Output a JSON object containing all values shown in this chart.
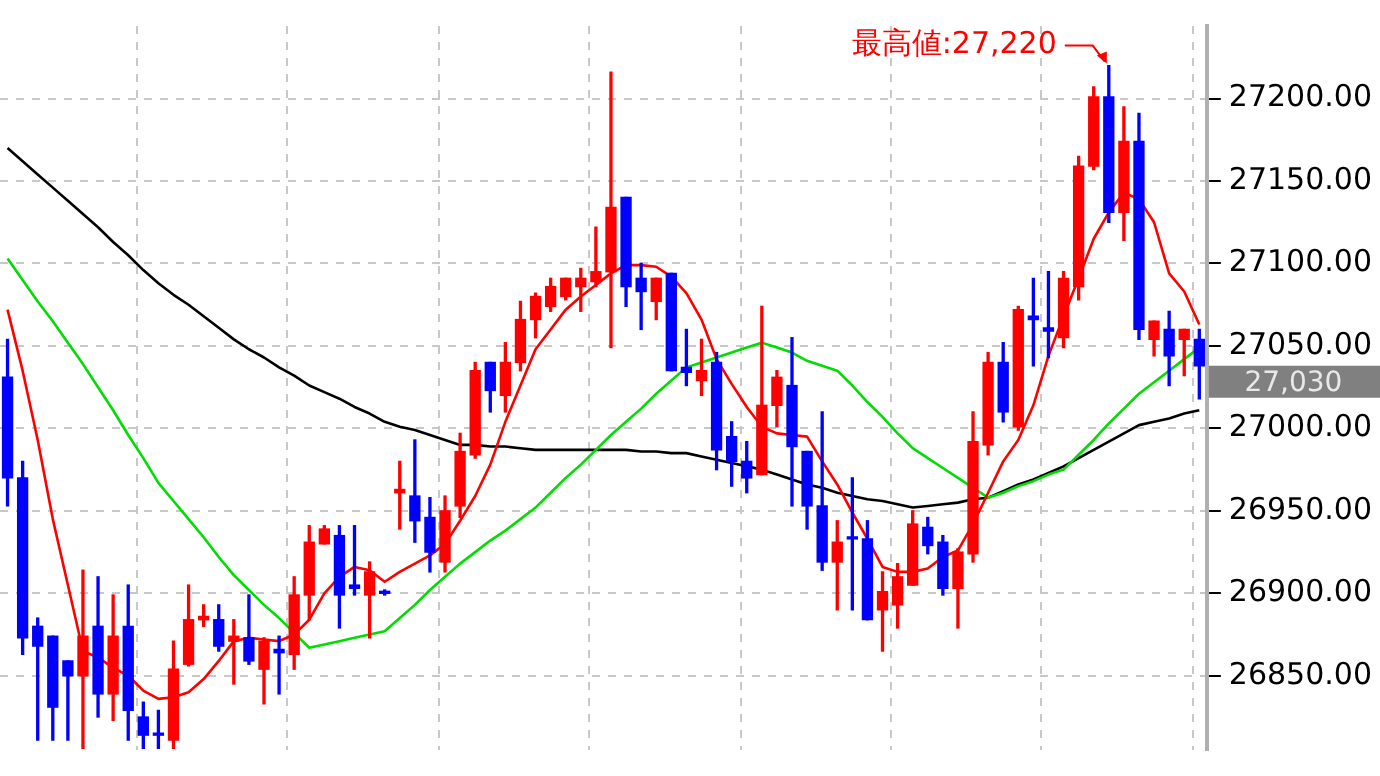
{
  "chart_data": {
    "type": "candlestick",
    "categories": [
      null,
      null,
      null,
      null,
      null,
      null,
      null,
      null,
      null,
      null,
      null,
      null,
      null,
      null,
      null,
      null,
      null,
      null,
      null,
      null,
      null,
      null,
      null,
      null,
      null,
      null,
      null,
      null,
      null,
      null,
      null,
      null,
      null,
      null,
      null,
      null,
      null,
      null,
      null,
      null,
      null,
      null,
      null,
      null,
      null,
      null,
      null,
      null,
      null,
      null,
      null,
      null,
      null,
      null,
      null,
      null,
      null,
      null,
      null,
      null,
      null,
      null,
      null,
      null,
      null,
      null,
      null,
      null,
      null,
      null,
      null,
      null,
      null,
      null,
      null,
      null,
      null,
      null,
      null,
      null
    ],
    "ohlc": [
      [
        27031,
        27054,
        26953,
        26970
      ],
      [
        26970,
        26980,
        26863,
        26873
      ],
      [
        26880,
        26885,
        26811,
        26868
      ],
      [
        26874,
        26874,
        26811,
        26831
      ],
      [
        26859,
        26859,
        26811,
        26850
      ],
      [
        26850,
        26914,
        26806,
        26874
      ],
      [
        26880,
        26910,
        26825,
        26839
      ],
      [
        26839,
        26899,
        26823,
        26874
      ],
      [
        26880,
        26905,
        26811,
        26829
      ],
      [
        26825,
        26834,
        26806,
        26814
      ],
      [
        26815,
        26829,
        26806,
        26814
      ],
      [
        26811,
        26871,
        26806,
        26854
      ],
      [
        26857,
        26905,
        26856,
        26884
      ],
      [
        26884,
        26893,
        26880,
        26886
      ],
      [
        26884,
        26893,
        26865,
        26868
      ],
      [
        26871,
        26884,
        26845,
        26874
      ],
      [
        26873,
        26899,
        26857,
        26859
      ],
      [
        26854,
        26873,
        26833,
        26871
      ],
      [
        26866,
        26874,
        26839,
        26864
      ],
      [
        26863,
        26910,
        26854,
        26899
      ],
      [
        26899,
        26941,
        26884,
        26931
      ],
      [
        26930,
        26941,
        26930,
        26939
      ],
      [
        26935,
        26941,
        26879,
        26899
      ],
      [
        26905,
        26941,
        26899,
        26903
      ],
      [
        26899,
        26919,
        26873,
        26913
      ],
      [
        26901,
        26902,
        26899,
        26900
      ],
      [
        26961,
        26980,
        26939,
        26963
      ],
      [
        26959,
        26993,
        26931,
        26944
      ],
      [
        26946,
        26958,
        26913,
        26925
      ],
      [
        26919,
        26959,
        26913,
        26950
      ],
      [
        26953,
        26997,
        26946,
        26986
      ],
      [
        26984,
        27040,
        26982,
        27035
      ],
      [
        27040,
        27040,
        27010,
        27023
      ],
      [
        27020,
        27052,
        27010,
        27040
      ],
      [
        27040,
        27077,
        27035,
        27066
      ],
      [
        27066,
        27082,
        27055,
        27080
      ],
      [
        27074,
        27091,
        27071,
        27086
      ],
      [
        27080,
        27091,
        27078,
        27091
      ],
      [
        27086,
        27097,
        27071,
        27091
      ],
      [
        27089,
        27122,
        27086,
        27095
      ],
      [
        27095,
        27216,
        27049,
        27134
      ],
      [
        27140,
        27140,
        27074,
        27086
      ],
      [
        27091,
        27100,
        27060,
        27083
      ],
      [
        27077,
        27091,
        27066,
        27091
      ],
      [
        27094,
        27094,
        27035,
        27035
      ],
      [
        27037,
        27060,
        27026,
        27034
      ],
      [
        27029,
        27054,
        27020,
        27035
      ],
      [
        27040,
        27046,
        26975,
        26987
      ],
      [
        26995,
        27004,
        26965,
        26980
      ],
      [
        26980,
        26992,
        26961,
        26970
      ],
      [
        26972,
        27074,
        26972,
        27014
      ],
      [
        27014,
        27035,
        27001,
        27031
      ],
      [
        27026,
        27055,
        26953,
        26989
      ],
      [
        26986,
        26986,
        26939,
        26953
      ],
      [
        26953,
        27010,
        26914,
        26919
      ],
      [
        26919,
        26944,
        26890,
        26931
      ],
      [
        26934,
        26970,
        26890,
        26933
      ],
      [
        26933,
        26944,
        26884,
        26884
      ],
      [
        26890,
        26913,
        26865,
        26901
      ],
      [
        26893,
        26918,
        26879,
        26910
      ],
      [
        26905,
        26950,
        26905,
        26942
      ],
      [
        26940,
        26946,
        26924,
        26929
      ],
      [
        26931,
        26935,
        26899,
        26903
      ],
      [
        26903,
        26927,
        26879,
        26925
      ],
      [
        26924,
        27010,
        26919,
        26992
      ],
      [
        26990,
        27046,
        26984,
        27040
      ],
      [
        27040,
        27052,
        27004,
        27010
      ],
      [
        27001,
        27074,
        26999,
        27072
      ],
      [
        27068,
        27091,
        27038,
        27066
      ],
      [
        27061,
        27095,
        27043,
        27059
      ],
      [
        27055,
        27095,
        27049,
        27091
      ],
      [
        27086,
        27165,
        27078,
        27159
      ],
      [
        27159,
        27207,
        27157,
        27201
      ],
      [
        27201,
        27220,
        27125,
        27131
      ],
      [
        27131,
        27195,
        27114,
        27174
      ],
      [
        27174,
        27191,
        27054,
        27060
      ],
      [
        27054,
        27065,
        27044,
        27065
      ],
      [
        27060,
        27071,
        27026,
        27044
      ],
      [
        27054,
        27060,
        27032,
        27060
      ],
      [
        27054,
        27060,
        27018,
        27038
      ]
    ],
    "colors": [
      "#0000ff",
      "#0000ff",
      "#0000ff",
      "#0000ff",
      "#0000ff",
      "#ff0000",
      "#0000ff",
      "#ff0000",
      "#0000ff",
      "#0000ff",
      "#0000ff",
      "#ff0000",
      "#ff0000",
      "#ff0000",
      "#0000ff",
      "#ff0000",
      "#0000ff",
      "#ff0000",
      "#0000ff",
      "#ff0000",
      "#ff0000",
      "#ff0000",
      "#0000ff",
      "#0000ff",
      "#ff0000",
      "#0000ff",
      "#ff0000",
      "#0000ff",
      "#0000ff",
      "#ff0000",
      "#ff0000",
      "#ff0000",
      "#0000ff",
      "#ff0000",
      "#ff0000",
      "#ff0000",
      "#ff0000",
      "#ff0000",
      "#ff0000",
      "#ff0000",
      "#ff0000",
      "#0000ff",
      "#0000ff",
      "#ff0000",
      "#0000ff",
      "#0000ff",
      "#ff0000",
      "#0000ff",
      "#0000ff",
      "#0000ff",
      "#ff0000",
      "#ff0000",
      "#0000ff",
      "#0000ff",
      "#0000ff",
      "#ff0000",
      "#0000ff",
      "#0000ff",
      "#ff0000",
      "#ff0000",
      "#ff0000",
      "#0000ff",
      "#0000ff",
      "#ff0000",
      "#ff0000",
      "#ff0000",
      "#0000ff",
      "#ff0000",
      "#0000ff",
      "#0000ff",
      "#ff0000",
      "#ff0000",
      "#ff0000",
      "#0000ff",
      "#ff0000",
      "#0000ff",
      "#ff0000",
      "#0000ff",
      "#ff0000",
      "#0000ff"
    ],
    "series": [
      {
        "type": "line",
        "color": "#ff0000",
        "values": [
          27072,
          27035,
          26993,
          26945,
          26905,
          26865,
          26861,
          26855,
          26850,
          26841,
          26836,
          26837,
          26840,
          26848,
          26859,
          26871,
          26873,
          26872,
          26871,
          26875,
          26884,
          26900,
          26910,
          26916,
          26914,
          26907,
          26913,
          26918,
          26923,
          26930,
          26944,
          26959,
          26978,
          27004,
          27026,
          27048,
          27060,
          27072,
          27080,
          27087,
          27094,
          27099,
          27099,
          27098,
          27092,
          27082,
          27066,
          27042,
          27027,
          27013,
          27001,
          26997,
          26996,
          26995,
          26980,
          26966,
          26949,
          26933,
          26916,
          26913,
          26913,
          26915,
          26922,
          26926,
          26942,
          26961,
          26980,
          26993,
          27014,
          27044,
          27068,
          27091,
          27115,
          27131,
          27143,
          27139,
          27125,
          27094,
          27083,
          27063
        ]
      },
      {
        "type": "line",
        "color": "#00dd00",
        "values": [
          27103,
          27090,
          27077,
          27065,
          27052,
          27039,
          27025,
          27011,
          26996,
          26982,
          26967,
          26956,
          26945,
          26934,
          26922,
          26911,
          26902,
          26893,
          26885,
          26876,
          26867,
          26869,
          26871,
          26873,
          26875,
          26877,
          26885,
          26893,
          26902,
          26910,
          26918,
          26925,
          26932,
          26938,
          26945,
          26952,
          26961,
          26970,
          26978,
          26987,
          26996,
          27004,
          27012,
          27021,
          27029,
          27037,
          27040,
          27043,
          27046,
          27049,
          27052,
          27049,
          27046,
          27041,
          27038,
          27035,
          27026,
          27016,
          27007,
          26997,
          26988,
          26982,
          26976,
          26970,
          26964,
          26958,
          26961,
          26965,
          26968,
          26972,
          26975,
          26984,
          26993,
          27003,
          27012,
          27021,
          27028,
          27035,
          27042,
          27049
        ]
      },
      {
        "type": "line",
        "color": "#000000",
        "values": [
          27170,
          27162,
          27154,
          27146,
          27138,
          27130,
          27122,
          27113,
          27105,
          27096,
          27088,
          27081,
          27075,
          27068,
          27061,
          27054,
          27048,
          27043,
          27037,
          27032,
          27026,
          27022,
          27018,
          27013,
          27009,
          27004,
          27001,
          26999,
          26996,
          26993,
          26990,
          26990,
          26989,
          26989,
          26988,
          26987,
          26987,
          26987,
          26987,
          26987,
          26987,
          26987,
          26986,
          26986,
          26985,
          26985,
          26983,
          26981,
          26979,
          26977,
          26975,
          26972,
          26969,
          26966,
          26964,
          26961,
          26959,
          26957,
          26956,
          26954,
          26952,
          26953,
          26954,
          26955,
          26957,
          26958,
          26962,
          26966,
          26969,
          26973,
          26977,
          26982,
          26987,
          26992,
          26997,
          27002,
          27004,
          27006,
          27009,
          27011
        ]
      }
    ],
    "ylim": [
      26805,
      27244
    ],
    "yticks": [
      {
        "value": 26850,
        "label": "26850.00"
      },
      {
        "value": 26900,
        "label": "26900.00"
      },
      {
        "value": 26950,
        "label": "26950.00"
      },
      {
        "value": 27000,
        "label": "27000.00"
      },
      {
        "value": 27050,
        "label": "27050.00"
      },
      {
        "value": 27100,
        "label": "27100.00"
      },
      {
        "value": 27150,
        "label": "27150.00"
      },
      {
        "value": 27200,
        "label": "27200.00"
      }
    ],
    "grid": true,
    "annotations": [
      "最高値:27,220",
      "27,030"
    ]
  }
}
